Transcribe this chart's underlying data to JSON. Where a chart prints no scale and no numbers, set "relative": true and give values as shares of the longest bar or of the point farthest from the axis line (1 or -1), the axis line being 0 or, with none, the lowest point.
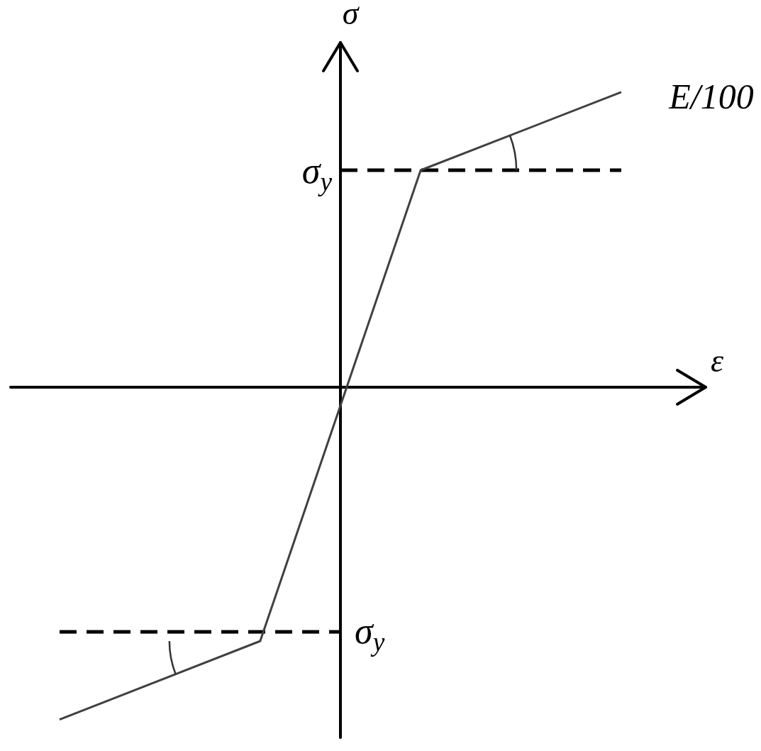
{
  "chart_data": {
    "type": "line",
    "relative": true,
    "xlabel": "ε",
    "ylabel": "σ",
    "marker": "none",
    "legend": false,
    "categories": [
      null,
      null,
      null,
      null,
      null,
      null,
      null,
      null,
      null,
      null,
      null,
      null,
      null,
      null,
      null
    ],
    "series": [
      {
        "color": "#404040",
        "line_style": "solid",
        "values": [
          -1,
          null,
          null,
          null,
          null,
          -0.764,
          null,
          null,
          null,
          0.653,
          null,
          null,
          null,
          null,
          0.888
        ]
      },
      {
        "color": "#000000",
        "line_style": "dashed",
        "values": [
          -0.736,
          null,
          null,
          null,
          null,
          null,
          null,
          -0.736,
          null,
          null,
          null,
          null,
          null,
          null,
          null
        ]
      },
      {
        "color": "#000000",
        "line_style": "dashed",
        "values": [
          null,
          null,
          null,
          null,
          null,
          null,
          null,
          0.653,
          null,
          null,
          null,
          null,
          null,
          null,
          0.653
        ]
      }
    ],
    "annotations": [
      "σ$_{y}$",
      "σ$_{y}$",
      "E/100"
    ]
  }
}
